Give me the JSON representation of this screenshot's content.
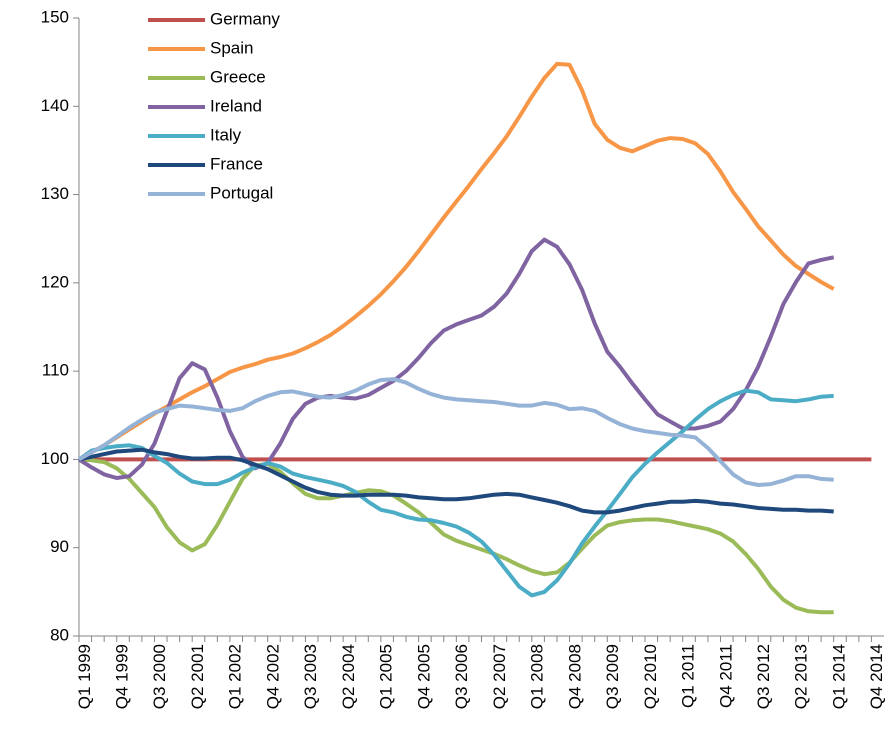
{
  "chart_data": {
    "type": "line",
    "categories": [
      "Q1 1999",
      null,
      null,
      "Q4 1999",
      null,
      null,
      "Q3 2000",
      null,
      null,
      "Q2 2001",
      null,
      null,
      "Q1 2002",
      null,
      null,
      "Q4 2002",
      null,
      null,
      "Q3 2003",
      null,
      null,
      "Q2 2004",
      null,
      null,
      "Q1 2005",
      null,
      null,
      "Q4 2005",
      null,
      null,
      "Q3 2006",
      null,
      null,
      "Q2 2007",
      null,
      null,
      "Q1 2008",
      null,
      null,
      "Q4 2008",
      null,
      null,
      "Q3 2009",
      null,
      null,
      "Q2 2010",
      null,
      null,
      "Q1 2011",
      null,
      null,
      "Q4 2011",
      null,
      null,
      "Q3 2012",
      null,
      null,
      "Q2 2013",
      null,
      null,
      "Q1 2014",
      null,
      null,
      "Q4 2014"
    ],
    "ylim": [
      80,
      150
    ],
    "yticks": [
      80,
      90,
      100,
      110,
      120,
      130,
      140,
      150
    ],
    "grid": false,
    "legend": "upper-left",
    "series": [
      {
        "name": "Germany",
        "color": "#c0504d",
        "values": [
          100,
          100,
          100,
          100,
          100,
          100,
          100,
          100,
          100,
          100,
          100,
          100,
          100,
          100,
          100,
          100,
          100,
          100,
          100,
          100,
          100,
          100,
          100,
          100,
          100,
          100,
          100,
          100,
          100,
          100,
          100,
          100,
          100,
          100,
          100,
          100,
          100,
          100,
          100,
          100,
          100,
          100,
          100,
          100,
          100,
          100,
          100,
          100,
          100,
          100,
          100,
          100,
          100,
          100,
          100,
          100,
          100,
          100,
          100,
          100,
          100,
          100,
          100,
          100
        ]
      },
      {
        "name": "Spain",
        "color": "#f79646",
        "values": [
          100,
          100.8,
          101.6,
          102.5,
          103.4,
          104.3,
          105.2,
          106,
          106.8,
          107.6,
          108.3,
          109.1,
          109.9,
          110.4,
          110.8,
          111.3,
          111.6,
          112,
          112.6,
          113.3,
          114.1,
          115.1,
          116.2,
          117.4,
          118.7,
          120.2,
          121.8,
          123.6,
          125.5,
          127.4,
          129.2,
          131,
          132.9,
          134.7,
          136.6,
          138.8,
          141.1,
          143.2,
          144.8,
          144.7,
          141.8,
          138,
          136.2,
          135.3,
          134.9,
          135.5,
          136.1,
          136.4,
          136.3,
          135.8,
          134.6,
          132.6,
          130.3,
          128.4,
          126.4,
          124.8,
          123.2,
          121.9,
          121,
          120.1,
          119.3,
          null,
          null,
          null
        ]
      },
      {
        "name": "Greece",
        "color": "#9bbb59",
        "values": [
          100,
          99.9,
          99.7,
          99,
          97.8,
          96.2,
          94.6,
          92.3,
          90.6,
          89.7,
          90.4,
          92.6,
          95.2,
          97.8,
          99.3,
          99.5,
          98.6,
          97.3,
          96.1,
          95.6,
          95.6,
          95.9,
          96.2,
          96.5,
          96.4,
          95.9,
          95,
          94,
          92.8,
          91.5,
          90.8,
          90.3,
          89.8,
          89.3,
          88.7,
          88,
          87.4,
          87,
          87.2,
          88.3,
          89.9,
          91.4,
          92.5,
          92.9,
          93.1,
          93.2,
          93.2,
          93,
          92.7,
          92.4,
          92.1,
          91.6,
          90.7,
          89.3,
          87.6,
          85.6,
          84.1,
          83.2,
          82.8,
          82.7,
          82.7,
          null,
          null,
          null
        ]
      },
      {
        "name": "Ireland",
        "color": "#8064a2",
        "values": [
          100,
          99.1,
          98.3,
          97.9,
          98.1,
          99.4,
          101.8,
          105.5,
          109.2,
          110.9,
          110.2,
          107,
          103.2,
          100.3,
          99,
          99.6,
          101.8,
          104.6,
          106.3,
          107,
          107.2,
          107,
          106.9,
          107.3,
          108.1,
          108.9,
          110,
          111.5,
          113.2,
          114.6,
          115.3,
          115.8,
          116.3,
          117.3,
          118.8,
          121,
          123.6,
          124.9,
          124.1,
          122.1,
          119.2,
          115.4,
          112.2,
          110.5,
          108.6,
          106.8,
          105.1,
          104.3,
          103.5,
          103.5,
          103.8,
          104.3,
          105.7,
          107.8,
          110.5,
          113.9,
          117.6,
          120.1,
          122.2,
          122.6,
          122.9,
          null,
          null,
          null
        ]
      },
      {
        "name": "Italy",
        "color": "#4bacc6",
        "values": [
          100,
          101,
          101.3,
          101.5,
          101.6,
          101.3,
          100.4,
          99.6,
          98.4,
          97.5,
          97.2,
          97.2,
          97.7,
          98.5,
          99.1,
          99.6,
          99.2,
          98.4,
          98,
          97.7,
          97.4,
          97,
          96.3,
          95.2,
          94.3,
          94,
          93.5,
          93.2,
          93.1,
          92.8,
          92.4,
          91.7,
          90.7,
          89.2,
          87.4,
          85.6,
          84.6,
          85,
          86.3,
          88.2,
          90.5,
          92.4,
          94.2,
          96.1,
          98,
          99.5,
          100.8,
          102,
          103.2,
          104.5,
          105.7,
          106.6,
          107.3,
          107.8,
          107.6,
          106.8,
          106.7,
          106.6,
          106.8,
          107.1,
          107.2,
          null,
          null,
          null
        ]
      },
      {
        "name": "France",
        "color": "#1f497d",
        "values": [
          100,
          100.3,
          100.6,
          100.9,
          101,
          101.1,
          100.8,
          100.6,
          100.3,
          100.1,
          100.1,
          100.2,
          100.2,
          99.9,
          99.4,
          98.9,
          98.2,
          97.5,
          96.8,
          96.3,
          96,
          95.9,
          95.9,
          96,
          96,
          96,
          95.9,
          95.7,
          95.6,
          95.5,
          95.5,
          95.6,
          95.8,
          96,
          96.1,
          96,
          95.7,
          95.4,
          95.1,
          94.7,
          94.2,
          94,
          94,
          94.2,
          94.5,
          94.8,
          95,
          95.2,
          95.2,
          95.3,
          95.2,
          95,
          94.9,
          94.7,
          94.5,
          94.4,
          94.3,
          94.3,
          94.2,
          94.2,
          94.1,
          null,
          null,
          null
        ]
      },
      {
        "name": "Portugal",
        "color": "#95b3d7",
        "values": [
          100,
          100.8,
          101.6,
          102.6,
          103.6,
          104.5,
          105.3,
          105.7,
          106.1,
          106,
          105.8,
          105.6,
          105.5,
          105.8,
          106.6,
          107.2,
          107.6,
          107.7,
          107.4,
          107.1,
          107,
          107.3,
          107.8,
          108.5,
          109,
          109.1,
          108.7,
          108,
          107.4,
          107,
          106.8,
          106.7,
          106.6,
          106.5,
          106.3,
          106.1,
          106.1,
          106.4,
          106.2,
          105.7,
          105.8,
          105.5,
          104.7,
          104,
          103.5,
          103.2,
          103,
          102.8,
          102.7,
          102.5,
          101.3,
          99.8,
          98.3,
          97.4,
          97.1,
          97.2,
          97.6,
          98.1,
          98.1,
          97.8,
          97.7,
          null,
          null,
          null
        ]
      }
    ]
  }
}
